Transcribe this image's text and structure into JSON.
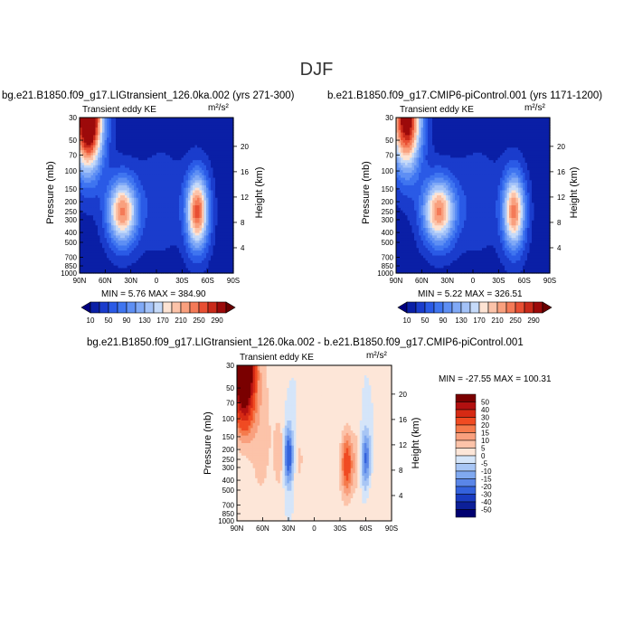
{
  "page": {
    "title": "DJF"
  },
  "panels": [
    {
      "case_title": "bg.e21.B1850.f09_g17.LIGtransient_126.0ka.002 (yrs 271-300)",
      "var_label": "Transient eddy KE",
      "units": "m²/s²",
      "minmax": "MIN =    5.76   MAX =  384.90"
    },
    {
      "case_title": "b.e21.B1850.f09_g17.CMIP6-piControl.001 (yrs 1171-1200)",
      "var_label": "Transient eddy KE",
      "units": "m²/s²",
      "minmax": "MIN =    5.22   MAX =  326.51"
    },
    {
      "case_title": "bg.e21.B1850.f09_g17.LIGtransient_126.0ka.002 - b.e21.B1850.f09_g17.CMIP6-piControl.001",
      "var_label": "Transient eddy KE",
      "units": "m²/s²",
      "minmax": "MIN =  -27.55   MAX =  100.31"
    }
  ],
  "axes": {
    "ylabel": "Pressure (mb)",
    "ylabel_right": "Height (km)",
    "p_ticks": [
      "30",
      "50",
      "70",
      "100",
      "150",
      "200",
      "250",
      "300",
      "400",
      "500",
      "700",
      "850",
      "1000"
    ],
    "p_vals": [
      30,
      50,
      70,
      100,
      150,
      200,
      250,
      300,
      400,
      500,
      700,
      850,
      1000
    ],
    "lat_ticks": [
      "90N",
      "60N",
      "30N",
      "0",
      "30S",
      "60S",
      "90S"
    ],
    "lat_vals": [
      90,
      60,
      30,
      0,
      -30,
      -60,
      -90
    ],
    "km_ticks": [
      "20",
      "16",
      "12",
      "8",
      "4"
    ],
    "km_vals": [
      20,
      16,
      12,
      8,
      4
    ]
  },
  "colorbars": {
    "top_labels": [
      "10",
      "50",
      "90",
      "130",
      "170",
      "210",
      "250",
      "290"
    ],
    "top_colors": [
      "#000080",
      "#0a1fa6",
      "#1a3ccc",
      "#2a5ae6",
      "#3f75f0",
      "#5e8ff4",
      "#80a9f6",
      "#a3c2f8",
      "#c5daf9",
      "#fde3d3",
      "#fcc3a9",
      "#f9a07e",
      "#f47a57",
      "#e84f33",
      "#c92a1a",
      "#9c0a0a",
      "#6a0000"
    ],
    "diff_labels": [
      "50",
      "40",
      "30",
      "20",
      "15",
      "10",
      "5",
      "0",
      "-5",
      "-10",
      "-15",
      "-20",
      "-30",
      "-40",
      "-50"
    ],
    "diff_colors": [
      "#7a0000",
      "#b21010",
      "#d62a14",
      "#f04b22",
      "#f57a4c",
      "#f9a07e",
      "#fcc3a9",
      "#fde6d8",
      "#d5e5f9",
      "#a8c6f5",
      "#80a9f0",
      "#5a86e8",
      "#3462dc",
      "#1a3cc0",
      "#0c1f98",
      "#000070"
    ]
  },
  "chart_data": [
    {
      "type": "heatmap",
      "title": "bg.e21.B1850.f09_g17.LIGtransient_126.0ka.002 (yrs 271-300)",
      "subtitle": "Transient eddy KE",
      "units": "m²/s²",
      "xlabel": "",
      "ylabel": "Pressure (mb)",
      "ylabel_right": "Height (km)",
      "xlim": [
        90,
        -90
      ],
      "ylim": [
        1000,
        30
      ],
      "y_scale": "log",
      "min": 5.76,
      "max": 384.9,
      "levels": [
        10,
        30,
        50,
        70,
        90,
        110,
        130,
        150,
        170,
        190,
        210,
        230,
        250,
        270,
        290
      ],
      "background": 20,
      "features": [
        {
          "lat": 80,
          "p": 30,
          "value": 384.9,
          "width_deg": 12,
          "width_logp": 0.35
        },
        {
          "lat": 40,
          "p": 250,
          "value": 230,
          "width_deg": 12,
          "width_logp": 0.22
        },
        {
          "lat": -48,
          "p": 250,
          "value": 255,
          "width_deg": 9,
          "width_logp": 0.25
        },
        {
          "lat": -5,
          "p": 200,
          "value": 45,
          "width_deg": 22,
          "width_logp": 0.35
        }
      ]
    },
    {
      "type": "heatmap",
      "title": "b.e21.B1850.f09_g17.CMIP6-piControl.001 (yrs 1171-1200)",
      "subtitle": "Transient eddy KE",
      "units": "m²/s²",
      "xlabel": "",
      "ylabel": "Pressure (mb)",
      "ylabel_right": "Height (km)",
      "xlim": [
        90,
        -90
      ],
      "ylim": [
        1000,
        30
      ],
      "y_scale": "log",
      "min": 5.22,
      "max": 326.51,
      "levels": [
        10,
        30,
        50,
        70,
        90,
        110,
        130,
        150,
        170,
        190,
        210,
        230,
        250,
        270,
        290
      ],
      "background": 20,
      "features": [
        {
          "lat": 78,
          "p": 30,
          "value": 326.51,
          "width_deg": 12,
          "width_logp": 0.35
        },
        {
          "lat": 40,
          "p": 250,
          "value": 230,
          "width_deg": 13,
          "width_logp": 0.22
        },
        {
          "lat": -48,
          "p": 250,
          "value": 235,
          "width_deg": 9,
          "width_logp": 0.25
        },
        {
          "lat": -5,
          "p": 200,
          "value": 45,
          "width_deg": 22,
          "width_logp": 0.35
        }
      ]
    },
    {
      "type": "heatmap",
      "title": "bg.e21.B1850.f09_g17.LIGtransient_126.0ka.002 - b.e21.B1850.f09_g17.CMIP6-piControl.001",
      "subtitle": "Transient eddy KE",
      "units": "m²/s²",
      "xlabel": "",
      "ylabel": "Pressure (mb)",
      "ylabel_right": "Height (km)",
      "xlim": [
        90,
        -90
      ],
      "ylim": [
        1000,
        30
      ],
      "y_scale": "log",
      "min": -27.55,
      "max": 100.31,
      "levels": [
        -50,
        -40,
        -30,
        -20,
        -15,
        -10,
        -5,
        0,
        5,
        10,
        15,
        20,
        30,
        40,
        50
      ],
      "background": 0,
      "features": [
        {
          "lat": 82,
          "p": 30,
          "value": 100.31,
          "width_deg": 8,
          "width_logp": 0.35
        },
        {
          "lat": 62,
          "p": 120,
          "value": 8,
          "width_deg": 10,
          "width_logp": 0.6
        },
        {
          "lat": 30,
          "p": 230,
          "value": -27.55,
          "width_deg": 4,
          "width_logp": 0.2
        },
        {
          "lat": 40,
          "p": 220,
          "value": 9,
          "width_deg": 5,
          "width_logp": 0.25
        },
        {
          "lat": 18,
          "p": 250,
          "value": 6,
          "width_deg": 5,
          "width_logp": 0.2
        },
        {
          "lat": 0,
          "p": 200,
          "value": 4,
          "width_deg": 6,
          "width_logp": 0.2
        },
        {
          "lat": -38,
          "p": 280,
          "value": 25,
          "width_deg": 5,
          "width_logp": 0.22
        },
        {
          "lat": -60,
          "p": 250,
          "value": -22,
          "width_deg": 4,
          "width_logp": 0.2
        },
        {
          "lat": -50,
          "p": 250,
          "value": 7,
          "width_deg": 4,
          "width_logp": 0.25
        },
        {
          "lat": -70,
          "p": 700,
          "value": 5,
          "width_deg": 8,
          "width_logp": 0.35
        },
        {
          "lat": -10,
          "p": 800,
          "value": 3,
          "width_deg": 15,
          "width_logp": 0.3
        }
      ]
    }
  ]
}
